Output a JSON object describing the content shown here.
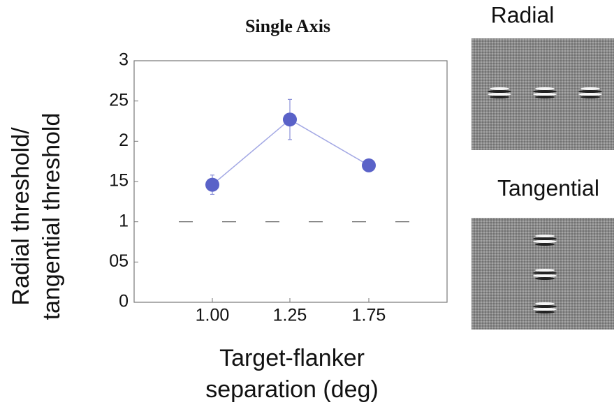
{
  "chart_data": {
    "type": "line",
    "title": "Single Axis",
    "y_label": [
      "Radial threshold/",
      "tangential threshold"
    ],
    "x_label": [
      "Target-flanker",
      "separation (deg)"
    ],
    "categories": [
      "1.00",
      "1.25",
      "1.75"
    ],
    "series": [
      {
        "color": "#5a62c8",
        "values": [
          1.46,
          2.27,
          1.7
        ],
        "errors": [
          0.12,
          0.25,
          0.05
        ]
      }
    ],
    "reference_line": 1,
    "ylim": [
      0,
      3
    ],
    "yticks": [
      0,
      {
        "value": 0.5,
        "label": "05"
      },
      1,
      {
        "value": 1.5,
        "label": "15"
      },
      2,
      {
        "value": 2.5,
        "label": "25"
      },
      3
    ]
  },
  "panels": [
    {
      "label": "Radial"
    },
    {
      "label": "Tangential"
    }
  ]
}
